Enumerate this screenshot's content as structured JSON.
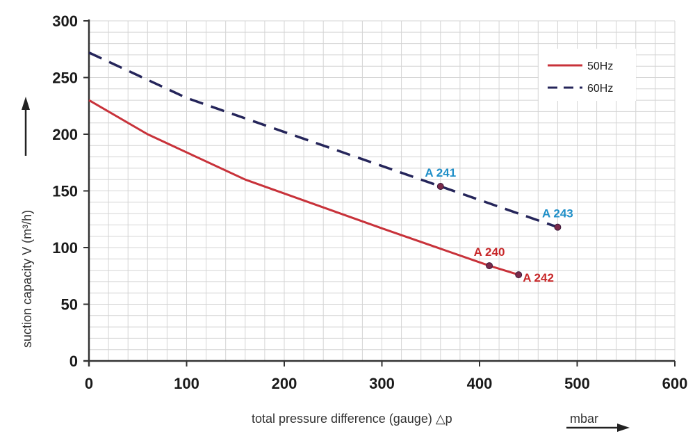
{
  "chart_data": {
    "type": "line",
    "title": "",
    "xlabel": "total pressure difference (gauge) △p",
    "xunit": "mbar",
    "ylabel": "suction capacity V (m³/h)",
    "xlim": [
      0,
      600
    ],
    "ylim": [
      0,
      300
    ],
    "xticks": [
      0,
      100,
      200,
      300,
      400,
      500,
      600
    ],
    "yticks": [
      0,
      50,
      100,
      150,
      200,
      250,
      300
    ],
    "x_minor_step": 20,
    "y_minor_step": 10,
    "grid": true,
    "legend_position": "top-right",
    "series": [
      {
        "name": "50Hz",
        "style": "solid",
        "color": "#c8323a",
        "x": [
          0,
          60,
          160,
          300,
          410,
          440
        ],
        "y": [
          230,
          200,
          160,
          117,
          84,
          76
        ]
      },
      {
        "name": "60Hz",
        "style": "dashed",
        "color": "#25255a",
        "x": [
          0,
          100,
          360,
          480
        ],
        "y": [
          272,
          232,
          154,
          118
        ]
      }
    ],
    "annotations": [
      {
        "text": "A 240",
        "x": 410,
        "y": 84,
        "color": "#c8282a",
        "anchor": "above"
      },
      {
        "text": "A 242",
        "x": 440,
        "y": 76,
        "color": "#c8282a",
        "anchor": "right"
      },
      {
        "text": "A 241",
        "x": 360,
        "y": 154,
        "color": "#1f8fc8",
        "anchor": "above"
      },
      {
        "text": "A 243",
        "x": 480,
        "y": 118,
        "color": "#1f8fc8",
        "anchor": "above"
      }
    ]
  }
}
